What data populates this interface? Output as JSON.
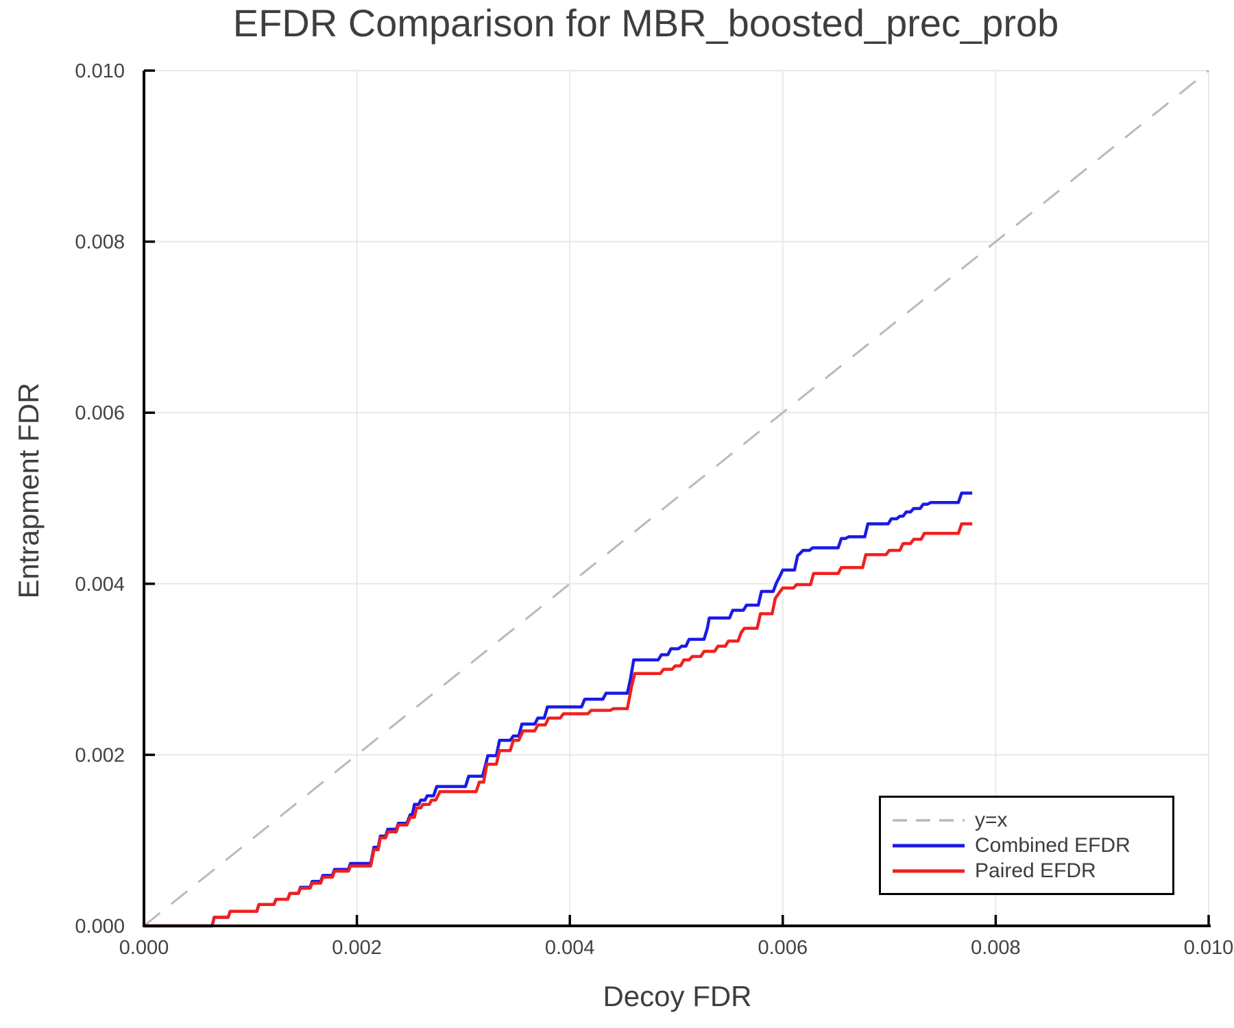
{
  "chart_data": {
    "type": "line",
    "title": "EFDR Comparison for MBR_boosted_prec_prob",
    "xlabel": "Decoy FDR",
    "ylabel": "Entrapment FDR",
    "xlim": [
      0.0,
      0.01
    ],
    "ylim": [
      0.0,
      0.01
    ],
    "x_ticks": [
      0.0,
      0.002,
      0.004,
      0.006,
      0.008,
      0.01
    ],
    "x_tick_labels": [
      "0.000",
      "0.002",
      "0.004",
      "0.006",
      "0.008",
      "0.010"
    ],
    "y_ticks": [
      0.0,
      0.002,
      0.004,
      0.006,
      0.008,
      0.01
    ],
    "y_tick_labels": [
      "0.000",
      "0.002",
      "0.004",
      "0.006",
      "0.008",
      "0.010"
    ],
    "grid": true,
    "grid_color": "#e8e8e8",
    "spine_color": "#000000",
    "tick_label_color": "#424242",
    "text_color": "#3e3e3e",
    "legend_position": "lower right",
    "series": [
      {
        "name": "y=x",
        "color": "#b9b9b9",
        "style": "dashed",
        "points": [
          [
            0.0,
            0.0
          ],
          [
            0.01,
            0.01
          ]
        ]
      },
      {
        "name": "Combined EFDR",
        "color": "#1a1ae6",
        "style": "solid",
        "points": [
          [
            0.0,
            0
          ],
          [
            0.00064,
            0
          ],
          [
            0.00066,
            0.0001
          ],
          [
            0.00079,
            0.0001
          ],
          [
            0.00081,
            0.00017
          ],
          [
            0.00106,
            0.00017
          ],
          [
            0.00108,
            0.00025
          ],
          [
            0.00122,
            0.00025
          ],
          [
            0.00124,
            0.00031
          ],
          [
            0.00135,
            0.00031
          ],
          [
            0.00137,
            0.00038
          ],
          [
            0.00145,
            0.00038
          ],
          [
            0.00147,
            0.00045
          ],
          [
            0.00156,
            0.00045
          ],
          [
            0.00158,
            0.00052
          ],
          [
            0.00166,
            0.00052
          ],
          [
            0.00168,
            0.00059
          ],
          [
            0.00177,
            0.00059
          ],
          [
            0.00179,
            0.00066
          ],
          [
            0.00192,
            0.00066
          ],
          [
            0.00194,
            0.00073
          ],
          [
            0.00213,
            0.00073
          ],
          [
            0.00216,
            0.00092
          ],
          [
            0.0022,
            0.00092
          ],
          [
            0.00222,
            0.00105
          ],
          [
            0.00227,
            0.00105
          ],
          [
            0.00229,
            0.00113
          ],
          [
            0.00237,
            0.00113
          ],
          [
            0.00239,
            0.0012
          ],
          [
            0.00247,
            0.0012
          ],
          [
            0.0025,
            0.0013
          ],
          [
            0.00252,
            0.0013
          ],
          [
            0.00254,
            0.00142
          ],
          [
            0.00258,
            0.00142
          ],
          [
            0.0026,
            0.00147
          ],
          [
            0.00264,
            0.00147
          ],
          [
            0.00266,
            0.00152
          ],
          [
            0.00272,
            0.00152
          ],
          [
            0.00275,
            0.00163
          ],
          [
            0.00302,
            0.00163
          ],
          [
            0.00305,
            0.00175
          ],
          [
            0.00318,
            0.00175
          ],
          [
            0.00321,
            0.00189
          ],
          [
            0.00323,
            0.00199
          ],
          [
            0.00331,
            0.00199
          ],
          [
            0.00334,
            0.00217
          ],
          [
            0.00344,
            0.00217
          ],
          [
            0.00347,
            0.00222
          ],
          [
            0.00352,
            0.00222
          ],
          [
            0.00355,
            0.00236
          ],
          [
            0.00367,
            0.00236
          ],
          [
            0.0037,
            0.00243
          ],
          [
            0.00376,
            0.00243
          ],
          [
            0.00379,
            0.00256
          ],
          [
            0.00411,
            0.00256
          ],
          [
            0.00414,
            0.00265
          ],
          [
            0.00431,
            0.00265
          ],
          [
            0.00434,
            0.00272
          ],
          [
            0.00454,
            0.00272
          ],
          [
            0.00457,
            0.00289
          ],
          [
            0.0046,
            0.00311
          ],
          [
            0.00483,
            0.00311
          ],
          [
            0.00486,
            0.00317
          ],
          [
            0.00492,
            0.00317
          ],
          [
            0.00495,
            0.00324
          ],
          [
            0.00502,
            0.00324
          ],
          [
            0.00505,
            0.00327
          ],
          [
            0.00509,
            0.00327
          ],
          [
            0.00512,
            0.00335
          ],
          [
            0.00526,
            0.00335
          ],
          [
            0.00529,
            0.00347
          ],
          [
            0.00531,
            0.0036
          ],
          [
            0.0055,
            0.0036
          ],
          [
            0.00553,
            0.00369
          ],
          [
            0.00563,
            0.00369
          ],
          [
            0.00566,
            0.00375
          ],
          [
            0.00577,
            0.00375
          ],
          [
            0.0058,
            0.00391
          ],
          [
            0.00591,
            0.00391
          ],
          [
            0.00594,
            0.00401
          ],
          [
            0.00597,
            0.00408
          ],
          [
            0.006,
            0.00416
          ],
          [
            0.00611,
            0.00416
          ],
          [
            0.00614,
            0.00433
          ],
          [
            0.00616,
            0.00435
          ],
          [
            0.00619,
            0.00439
          ],
          [
            0.00625,
            0.00439
          ],
          [
            0.00628,
            0.00442
          ],
          [
            0.00652,
            0.00442
          ],
          [
            0.00655,
            0.00453
          ],
          [
            0.00659,
            0.00453
          ],
          [
            0.00662,
            0.00455
          ],
          [
            0.00677,
            0.00455
          ],
          [
            0.0068,
            0.0047
          ],
          [
            0.00699,
            0.0047
          ],
          [
            0.00702,
            0.00476
          ],
          [
            0.00707,
            0.00476
          ],
          [
            0.0071,
            0.00479
          ],
          [
            0.00713,
            0.00479
          ],
          [
            0.00716,
            0.00484
          ],
          [
            0.0072,
            0.00484
          ],
          [
            0.00723,
            0.00488
          ],
          [
            0.00729,
            0.00488
          ],
          [
            0.00732,
            0.00493
          ],
          [
            0.00736,
            0.00493
          ],
          [
            0.00739,
            0.00495
          ],
          [
            0.00765,
            0.00495
          ],
          [
            0.00768,
            0.00506
          ],
          [
            0.00778,
            0.00506
          ]
        ]
      },
      {
        "name": "Paired EFDR",
        "color": "#f02020",
        "style": "solid",
        "points": [
          [
            0.0,
            0
          ],
          [
            0.00064,
            0
          ],
          [
            0.00066,
            0.0001
          ],
          [
            0.00079,
            0.0001
          ],
          [
            0.00081,
            0.00017
          ],
          [
            0.00106,
            0.00017
          ],
          [
            0.00108,
            0.00025
          ],
          [
            0.00122,
            0.00025
          ],
          [
            0.00124,
            0.00031
          ],
          [
            0.00135,
            0.00031
          ],
          [
            0.00137,
            0.00038
          ],
          [
            0.00145,
            0.00038
          ],
          [
            0.00147,
            0.00044
          ],
          [
            0.00156,
            0.00044
          ],
          [
            0.00158,
            0.0005
          ],
          [
            0.00166,
            0.0005
          ],
          [
            0.00168,
            0.00057
          ],
          [
            0.00177,
            0.00057
          ],
          [
            0.00179,
            0.00064
          ],
          [
            0.00192,
            0.00064
          ],
          [
            0.00194,
            0.0007
          ],
          [
            0.00213,
            0.0007
          ],
          [
            0.00216,
            0.00089
          ],
          [
            0.0022,
            0.00089
          ],
          [
            0.00222,
            0.00103
          ],
          [
            0.00227,
            0.00103
          ],
          [
            0.00229,
            0.0011
          ],
          [
            0.00237,
            0.0011
          ],
          [
            0.00239,
            0.00118
          ],
          [
            0.00247,
            0.00118
          ],
          [
            0.0025,
            0.00127
          ],
          [
            0.00254,
            0.00127
          ],
          [
            0.00256,
            0.00138
          ],
          [
            0.0026,
            0.00138
          ],
          [
            0.00262,
            0.00142
          ],
          [
            0.00268,
            0.00142
          ],
          [
            0.0027,
            0.00147
          ],
          [
            0.00274,
            0.00147
          ],
          [
            0.00278,
            0.00157
          ],
          [
            0.00312,
            0.00157
          ],
          [
            0.00315,
            0.00168
          ],
          [
            0.00319,
            0.00168
          ],
          [
            0.00322,
            0.00189
          ],
          [
            0.00331,
            0.00189
          ],
          [
            0.00334,
            0.00205
          ],
          [
            0.00344,
            0.00205
          ],
          [
            0.00347,
            0.00217
          ],
          [
            0.00352,
            0.00217
          ],
          [
            0.00356,
            0.00228
          ],
          [
            0.00367,
            0.00228
          ],
          [
            0.0037,
            0.00235
          ],
          [
            0.00377,
            0.00235
          ],
          [
            0.0038,
            0.00243
          ],
          [
            0.00391,
            0.00243
          ],
          [
            0.00394,
            0.00248
          ],
          [
            0.00417,
            0.00248
          ],
          [
            0.0042,
            0.00252
          ],
          [
            0.00438,
            0.00252
          ],
          [
            0.00441,
            0.00254
          ],
          [
            0.00454,
            0.00254
          ],
          [
            0.00458,
            0.0028
          ],
          [
            0.00461,
            0.00295
          ],
          [
            0.00485,
            0.00295
          ],
          [
            0.00488,
            0.003
          ],
          [
            0.00496,
            0.003
          ],
          [
            0.00499,
            0.00304
          ],
          [
            0.00504,
            0.00304
          ],
          [
            0.00507,
            0.00311
          ],
          [
            0.00512,
            0.00311
          ],
          [
            0.00515,
            0.00315
          ],
          [
            0.00523,
            0.00315
          ],
          [
            0.00526,
            0.00321
          ],
          [
            0.00536,
            0.00321
          ],
          [
            0.00539,
            0.00327
          ],
          [
            0.00546,
            0.00327
          ],
          [
            0.00549,
            0.00333
          ],
          [
            0.00558,
            0.00333
          ],
          [
            0.00561,
            0.00343
          ],
          [
            0.00564,
            0.00348
          ],
          [
            0.00576,
            0.00348
          ],
          [
            0.00579,
            0.00365
          ],
          [
            0.0059,
            0.00365
          ],
          [
            0.00593,
            0.00383
          ],
          [
            0.00597,
            0.0039
          ],
          [
            0.006,
            0.00395
          ],
          [
            0.0061,
            0.00395
          ],
          [
            0.00613,
            0.00399
          ],
          [
            0.00626,
            0.00399
          ],
          [
            0.00629,
            0.00412
          ],
          [
            0.00652,
            0.00412
          ],
          [
            0.00655,
            0.00419
          ],
          [
            0.00675,
            0.00419
          ],
          [
            0.00678,
            0.00434
          ],
          [
            0.00697,
            0.00434
          ],
          [
            0.007,
            0.00439
          ],
          [
            0.0071,
            0.00439
          ],
          [
            0.00713,
            0.00447
          ],
          [
            0.0072,
            0.00447
          ],
          [
            0.00723,
            0.00452
          ],
          [
            0.0073,
            0.00452
          ],
          [
            0.00733,
            0.00459
          ],
          [
            0.00765,
            0.00459
          ],
          [
            0.00768,
            0.0047
          ],
          [
            0.00778,
            0.0047
          ]
        ]
      }
    ]
  }
}
